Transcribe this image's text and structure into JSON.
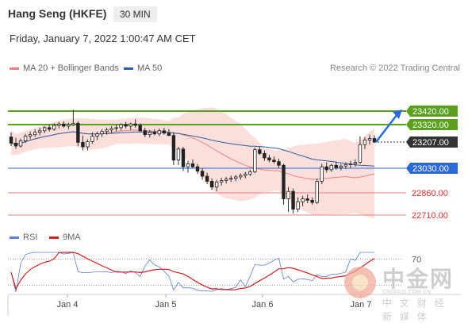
{
  "header": {
    "title": "Hang Seng (HKFE)",
    "timeframe": "30 MIN",
    "datetime": "Friday, January 7, 2022 1:00:47 AM CET"
  },
  "legend": {
    "ma20_label": "MA 20 + Bollinger Bands",
    "ma20_color": "#f08080",
    "ma50_label": "MA 50",
    "ma50_color": "#2c5fa8",
    "credit": "Research © 2022 Trading Central"
  },
  "rsi_legend": {
    "rsi_label": "RSI",
    "rsi_color": "#5b7fd6",
    "ma9_label": "9MA",
    "ma9_color": "#d42020"
  },
  "watermark": {
    "cn_name": "中金网",
    "url": "CNGOLD.COM.CN",
    "subtitle": "中 文 财 经 新 媒 体"
  },
  "chart_data": {
    "type": "candlestick",
    "title": "Hang Seng (HKFE)",
    "timeframe": "30 MIN",
    "x_labels": [
      "Jan 4",
      "Jan 5",
      "Jan 6",
      "Jan 7"
    ],
    "y_range": [
      22650,
      23500
    ],
    "current_price": 23207.0,
    "levels": [
      {
        "value": 23420.0,
        "label": "23420.00",
        "kind": "resistance",
        "color": "#5aa01e"
      },
      {
        "value": 23320.0,
        "label": "23320.00",
        "kind": "resistance",
        "color": "#5aa01e"
      },
      {
        "value": 23207.0,
        "label": "23207.00",
        "kind": "last",
        "color": "#333333"
      },
      {
        "value": 23030.0,
        "label": "23030.00",
        "kind": "pivot",
        "color": "#2c6ad8"
      },
      {
        "value": 22860.0,
        "label": "22860.00",
        "kind": "support",
        "color": "#e03030"
      },
      {
        "value": 22710.0,
        "label": "22710.00",
        "kind": "support",
        "color": "#e03030"
      }
    ],
    "candles": [
      [
        23240,
        23270,
        23180,
        23200
      ],
      [
        23200,
        23235,
        23160,
        23180
      ],
      [
        23180,
        23230,
        23170,
        23215
      ],
      [
        23215,
        23260,
        23200,
        23245
      ],
      [
        23245,
        23275,
        23225,
        23255
      ],
      [
        23255,
        23290,
        23240,
        23270
      ],
      [
        23270,
        23300,
        23250,
        23280
      ],
      [
        23280,
        23310,
        23265,
        23300
      ],
      [
        23300,
        23320,
        23275,
        23290
      ],
      [
        23290,
        23330,
        23280,
        23315
      ],
      [
        23315,
        23340,
        23295,
        23325
      ],
      [
        23325,
        23345,
        23300,
        23310
      ],
      [
        23310,
        23335,
        23290,
        23320
      ],
      [
        23320,
        23430,
        23310,
        23330
      ],
      [
        23330,
        23345,
        23180,
        23205
      ],
      [
        23205,
        23250,
        23150,
        23175
      ],
      [
        23175,
        23225,
        23150,
        23210
      ],
      [
        23210,
        23270,
        23195,
        23245
      ],
      [
        23245,
        23275,
        23220,
        23260
      ],
      [
        23260,
        23290,
        23240,
        23275
      ],
      [
        23275,
        23300,
        23255,
        23285
      ],
      [
        23285,
        23310,
        23265,
        23295
      ],
      [
        23295,
        23320,
        23275,
        23300
      ],
      [
        23300,
        23330,
        23280,
        23320
      ],
      [
        23320,
        23340,
        23295,
        23310
      ],
      [
        23310,
        23335,
        23285,
        23325
      ],
      [
        23325,
        23360,
        23300,
        23315
      ],
      [
        23315,
        23330,
        23270,
        23280
      ],
      [
        23280,
        23300,
        23240,
        23255
      ],
      [
        23255,
        23285,
        23235,
        23270
      ],
      [
        23270,
        23290,
        23250,
        23260
      ],
      [
        23260,
        23295,
        23245,
        23280
      ],
      [
        23280,
        23300,
        23255,
        23265
      ],
      [
        23265,
        23290,
        23245,
        23250
      ],
      [
        23250,
        23270,
        23050,
        23085
      ],
      [
        23085,
        23175,
        23050,
        23160
      ],
      [
        23160,
        23175,
        23010,
        23040
      ],
      [
        23040,
        23080,
        23000,
        23060
      ],
      [
        23060,
        23090,
        23030,
        23040
      ],
      [
        23040,
        23060,
        22990,
        23010
      ],
      [
        23010,
        23030,
        22950,
        22975
      ],
      [
        22975,
        23000,
        22920,
        22940
      ],
      [
        22940,
        22960,
        22880,
        22900
      ],
      [
        22900,
        22950,
        22870,
        22935
      ],
      [
        22935,
        22965,
        22910,
        22945
      ],
      [
        22945,
        22970,
        22925,
        22955
      ],
      [
        22955,
        22980,
        22935,
        22960
      ],
      [
        22960,
        22985,
        22940,
        22970
      ],
      [
        22970,
        22995,
        22950,
        22980
      ],
      [
        22980,
        23005,
        22960,
        22990
      ],
      [
        22990,
        23020,
        22975,
        23005
      ],
      [
        23005,
        23170,
        22995,
        23155
      ],
      [
        23155,
        23175,
        23120,
        23130
      ],
      [
        23130,
        23150,
        23080,
        23100
      ],
      [
        23100,
        23120,
        23070,
        23085
      ],
      [
        23085,
        23110,
        23060,
        23075
      ],
      [
        23075,
        23095,
        23030,
        23050
      ],
      [
        23050,
        23060,
        22780,
        22820
      ],
      [
        22820,
        22900,
        22730,
        22870
      ],
      [
        22870,
        22890,
        22720,
        22750
      ],
      [
        22750,
        22830,
        22730,
        22800
      ],
      [
        22800,
        22840,
        22770,
        22820
      ],
      [
        22820,
        22850,
        22790,
        22810
      ],
      [
        22810,
        22830,
        22780,
        22795
      ],
      [
        22795,
        22960,
        22785,
        22940
      ],
      [
        22940,
        23060,
        22920,
        23040
      ],
      [
        23040,
        23070,
        23000,
        23020
      ],
      [
        23020,
        23060,
        23005,
        23050
      ],
      [
        23050,
        23075,
        23020,
        23035
      ],
      [
        23035,
        23060,
        23015,
        23045
      ],
      [
        23045,
        23070,
        23025,
        23055
      ],
      [
        23055,
        23080,
        23030,
        23060
      ],
      [
        23060,
        23090,
        23040,
        23070
      ],
      [
        23070,
        23245,
        23060,
        23190
      ],
      [
        23190,
        23240,
        23160,
        23220
      ],
      [
        23220,
        23255,
        23190,
        23230
      ],
      [
        23230,
        23250,
        23200,
        23207
      ]
    ],
    "rsi_level": 70,
    "series": [
      {
        "name": "MA 20 + Bollinger Bands"
      },
      {
        "name": "MA 50"
      },
      {
        "name": "RSI"
      },
      {
        "name": "9MA"
      }
    ]
  }
}
